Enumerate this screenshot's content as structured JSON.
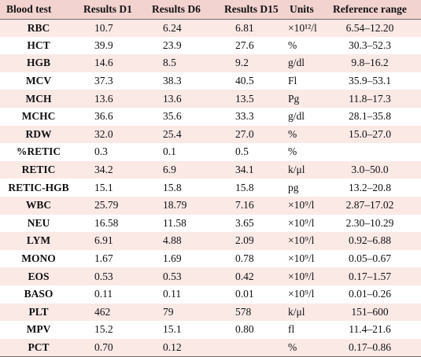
{
  "table": {
    "headers": [
      "Blood test",
      "Results D1",
      "Results D6",
      "Results D15",
      "Units",
      "Reference range"
    ],
    "rows": [
      {
        "test": "RBC",
        "d1": "10.7",
        "d6": "6.24",
        "d15": "6.81",
        "unit": "×10¹²/l",
        "ref": "6.54–12.20"
      },
      {
        "test": "HCT",
        "d1": "39.9",
        "d6": "23.9",
        "d15": "27.6",
        "unit": "%",
        "ref": "30.3–52.3"
      },
      {
        "test": "HGB",
        "d1": "14.6",
        "d6": "8.5",
        "d15": "9.2",
        "unit": "g/dl",
        "ref": "9.8–16.2"
      },
      {
        "test": "MCV",
        "d1": "37.3",
        "d6": "38.3",
        "d15": "40.5",
        "unit": "Fl",
        "ref": "35.9–53.1"
      },
      {
        "test": "MCH",
        "d1": "13.6",
        "d6": "13.6",
        "d15": "13.5",
        "unit": "Pg",
        "ref": "11.8–17.3"
      },
      {
        "test": "MCHC",
        "d1": "36.6",
        "d6": "35.6",
        "d15": "33.3",
        "unit": "g/dl",
        "ref": "28.1–35.8"
      },
      {
        "test": "RDW",
        "d1": "32.0",
        "d6": "25.4",
        "d15": "27.0",
        "unit": "%",
        "ref": "15.0–27.0"
      },
      {
        "test": "%RETIC",
        "d1": "0.3",
        "d6": "0.1",
        "d15": "0.5",
        "unit": "%",
        "ref": ""
      },
      {
        "test": "RETIC",
        "d1": "34.2",
        "d6": "6.9",
        "d15": "34.1",
        "unit": "k/μl",
        "ref": "3.0–50.0"
      },
      {
        "test": "RETIC-HGB",
        "d1": "15.1",
        "d6": "15.8",
        "d15": "15.8",
        "unit": "pg",
        "ref": "13.2–20.8"
      },
      {
        "test": "WBC",
        "d1": "25.79",
        "d6": "18.79",
        "d15": "7.16",
        "unit": "×10⁹/l",
        "ref": "2.87–17.02"
      },
      {
        "test": "NEU",
        "d1": "16.58",
        "d6": "11.58",
        "d15": "3.65",
        "unit": "×10⁹/l",
        "ref": "2.30–10.29"
      },
      {
        "test": "LYM",
        "d1": "6.91",
        "d6": "4.88",
        "d15": "2.09",
        "unit": "×10⁹/l",
        "ref": "0.92–6.88"
      },
      {
        "test": "MONO",
        "d1": "1.67",
        "d6": "1.69",
        "d15": "0.78",
        "unit": "×10⁹/l",
        "ref": "0.05–0.67"
      },
      {
        "test": "EOS",
        "d1": "0.53",
        "d6": "0.53",
        "d15": "0.42",
        "unit": "×10⁹/l",
        "ref": "0.17–1.57"
      },
      {
        "test": "BASO",
        "d1": "0.11",
        "d6": "0.11",
        "d15": "0.01",
        "unit": "×10⁹/l",
        "ref": "0.01–0.26"
      },
      {
        "test": "PLT",
        "d1": "462",
        "d6": "79",
        "d15": "578",
        "unit": "k/μl",
        "ref": "151–600"
      },
      {
        "test": "MPV",
        "d1": "15.2",
        "d6": "15.1",
        "d15": "0.80",
        "unit": "fl",
        "ref": "11.4–21.6"
      },
      {
        "test": "PCT",
        "d1": "0.70",
        "d6": "0.12",
        "d15": "",
        "unit": "%",
        "ref": "0.17–0.86"
      }
    ]
  }
}
